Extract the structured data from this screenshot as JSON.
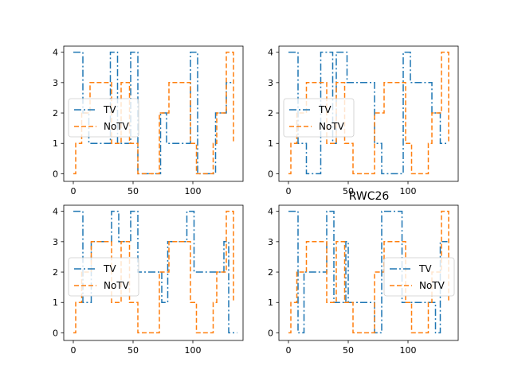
{
  "figure": {
    "annotation": "RWC26"
  },
  "colors": {
    "tv": "#1f77b4",
    "notv": "#ff7f0e",
    "axes": "#000000",
    "background": "#ffffff"
  },
  "chart_data": [
    {
      "type": "line",
      "panel": "top-left",
      "title": "",
      "xlabel": "",
      "ylabel": "",
      "xlim": [
        -8,
        142
      ],
      "ylim": [
        -0.25,
        4.2
      ],
      "xticks": [
        0,
        50,
        100
      ],
      "yticks": [
        0,
        1,
        2,
        3,
        4
      ],
      "legend": {
        "position": "center-left"
      },
      "series": [
        {
          "name": "TV",
          "style": "dashdot",
          "color": "#1f77b4",
          "points": [
            [
              0,
              4
            ],
            [
              8,
              4
            ],
            [
              8,
              2
            ],
            [
              13,
              2
            ],
            [
              13,
              1
            ],
            [
              31,
              1
            ],
            [
              31,
              4
            ],
            [
              37,
              4
            ],
            [
              37,
              1
            ],
            [
              48,
              1
            ],
            [
              48,
              4
            ],
            [
              54,
              4
            ],
            [
              54,
              0
            ],
            [
              73,
              0
            ],
            [
              73,
              2
            ],
            [
              78,
              2
            ],
            [
              78,
              1
            ],
            [
              98,
              1
            ],
            [
              98,
              4
            ],
            [
              104,
              4
            ],
            [
              104,
              0
            ],
            [
              119,
              0
            ],
            [
              119,
              2
            ],
            [
              128,
              2
            ],
            [
              128,
              3
            ],
            [
              134,
              3
            ]
          ]
        },
        {
          "name": "NoTV",
          "style": "dashed",
          "color": "#ff7f0e",
          "points": [
            [
              0,
              0
            ],
            [
              2,
              0
            ],
            [
              2,
              1
            ],
            [
              7,
              1
            ],
            [
              7,
              2
            ],
            [
              14,
              2
            ],
            [
              14,
              3
            ],
            [
              32,
              3
            ],
            [
              32,
              1
            ],
            [
              40,
              1
            ],
            [
              40,
              3
            ],
            [
              47,
              3
            ],
            [
              47,
              1
            ],
            [
              54,
              1
            ],
            [
              54,
              0
            ],
            [
              72,
              0
            ],
            [
              72,
              2
            ],
            [
              80,
              2
            ],
            [
              80,
              3
            ],
            [
              98,
              3
            ],
            [
              98,
              1
            ],
            [
              103,
              1
            ],
            [
              103,
              0
            ],
            [
              117,
              0
            ],
            [
              117,
              1
            ],
            [
              120,
              1
            ],
            [
              120,
              2
            ],
            [
              128,
              2
            ],
            [
              128,
              4
            ],
            [
              134,
              4
            ],
            [
              134,
              1
            ]
          ]
        }
      ]
    },
    {
      "type": "line",
      "panel": "top-right",
      "title": "",
      "xlabel": "",
      "ylabel": "",
      "xlim": [
        -8,
        142
      ],
      "ylim": [
        -0.25,
        4.2
      ],
      "xticks": [
        0,
        50,
        100
      ],
      "yticks": [
        0,
        1,
        2,
        3,
        4
      ],
      "legend": {
        "position": "center-left"
      },
      "series": [
        {
          "name": "TV",
          "style": "dashdot",
          "color": "#1f77b4",
          "points": [
            [
              0,
              4
            ],
            [
              8,
              4
            ],
            [
              8,
              1
            ],
            [
              15,
              1
            ],
            [
              15,
              0
            ],
            [
              27,
              0
            ],
            [
              27,
              4
            ],
            [
              37,
              4
            ],
            [
              37,
              1
            ],
            [
              40,
              1
            ],
            [
              40,
              4
            ],
            [
              49,
              4
            ],
            [
              49,
              3
            ],
            [
              72,
              3
            ],
            [
              72,
              1
            ],
            [
              78,
              1
            ],
            [
              78,
              0
            ],
            [
              96,
              0
            ],
            [
              96,
              4
            ],
            [
              102,
              4
            ],
            [
              102,
              3
            ],
            [
              120,
              3
            ],
            [
              120,
              2
            ],
            [
              127,
              2
            ],
            [
              127,
              1
            ],
            [
              134,
              1
            ]
          ]
        },
        {
          "name": "NoTV",
          "style": "dashed",
          "color": "#ff7f0e",
          "points": [
            [
              0,
              0
            ],
            [
              2,
              0
            ],
            [
              2,
              1
            ],
            [
              7,
              1
            ],
            [
              7,
              2
            ],
            [
              15,
              2
            ],
            [
              15,
              3
            ],
            [
              32,
              3
            ],
            [
              32,
              1
            ],
            [
              40,
              1
            ],
            [
              40,
              3
            ],
            [
              47,
              3
            ],
            [
              47,
              1
            ],
            [
              54,
              1
            ],
            [
              54,
              0
            ],
            [
              72,
              0
            ],
            [
              72,
              2
            ],
            [
              80,
              2
            ],
            [
              80,
              3
            ],
            [
              98,
              3
            ],
            [
              98,
              1
            ],
            [
              103,
              1
            ],
            [
              103,
              0
            ],
            [
              117,
              0
            ],
            [
              117,
              1
            ],
            [
              120,
              1
            ],
            [
              120,
              2
            ],
            [
              128,
              2
            ],
            [
              128,
              4
            ],
            [
              134,
              4
            ],
            [
              134,
              1
            ]
          ]
        }
      ]
    },
    {
      "type": "line",
      "panel": "bottom-left",
      "title": "",
      "xlabel": "",
      "ylabel": "",
      "xlim": [
        -8,
        142
      ],
      "ylim": [
        -0.25,
        4.2
      ],
      "xticks": [
        0,
        50,
        100
      ],
      "yticks": [
        0,
        1,
        2,
        3,
        4
      ],
      "legend": {
        "position": "center-left"
      },
      "series": [
        {
          "name": "TV",
          "style": "dashdot",
          "color": "#1f77b4",
          "points": [
            [
              0,
              4
            ],
            [
              8,
              4
            ],
            [
              8,
              1
            ],
            [
              15,
              1
            ],
            [
              15,
              3
            ],
            [
              32,
              3
            ],
            [
              32,
              4
            ],
            [
              38,
              4
            ],
            [
              38,
              3
            ],
            [
              48,
              3
            ],
            [
              48,
              4
            ],
            [
              54,
              4
            ],
            [
              54,
              2
            ],
            [
              74,
              2
            ],
            [
              74,
              1
            ],
            [
              79,
              1
            ],
            [
              79,
              3
            ],
            [
              95,
              3
            ],
            [
              95,
              4
            ],
            [
              101,
              4
            ],
            [
              101,
              2
            ],
            [
              126,
              2
            ],
            [
              126,
              3
            ],
            [
              130,
              3
            ],
            [
              130,
              0
            ],
            [
              137,
              0
            ]
          ]
        },
        {
          "name": "NoTV",
          "style": "dashed",
          "color": "#ff7f0e",
          "points": [
            [
              0,
              0
            ],
            [
              2,
              0
            ],
            [
              2,
              1
            ],
            [
              7,
              1
            ],
            [
              7,
              2
            ],
            [
              15,
              2
            ],
            [
              15,
              3
            ],
            [
              32,
              3
            ],
            [
              32,
              1
            ],
            [
              40,
              1
            ],
            [
              40,
              3
            ],
            [
              47,
              3
            ],
            [
              47,
              1
            ],
            [
              54,
              1
            ],
            [
              54,
              0
            ],
            [
              72,
              0
            ],
            [
              72,
              2
            ],
            [
              80,
              2
            ],
            [
              80,
              3
            ],
            [
              98,
              3
            ],
            [
              98,
              1
            ],
            [
              103,
              1
            ],
            [
              103,
              0
            ],
            [
              117,
              0
            ],
            [
              117,
              1
            ],
            [
              120,
              1
            ],
            [
              120,
              2
            ],
            [
              128,
              2
            ],
            [
              128,
              4
            ],
            [
              134,
              4
            ],
            [
              134,
              1
            ]
          ]
        }
      ]
    },
    {
      "type": "line",
      "panel": "bottom-right",
      "title": "",
      "xlabel": "",
      "ylabel": "",
      "xlim": [
        -8,
        142
      ],
      "ylim": [
        -0.25,
        4.2
      ],
      "xticks": [
        0,
        50,
        100
      ],
      "yticks": [
        0,
        1,
        2,
        3,
        4
      ],
      "legend": {
        "position": "center-right"
      },
      "series": [
        {
          "name": "TV",
          "style": "dashdot",
          "color": "#1f77b4",
          "points": [
            [
              0,
              4
            ],
            [
              8,
              4
            ],
            [
              8,
              0
            ],
            [
              13,
              0
            ],
            [
              13,
              2
            ],
            [
              32,
              2
            ],
            [
              32,
              4
            ],
            [
              38,
              4
            ],
            [
              38,
              1
            ],
            [
              48,
              1
            ],
            [
              48,
              3
            ],
            [
              50,
              3
            ],
            [
              50,
              1
            ],
            [
              72,
              1
            ],
            [
              72,
              0
            ],
            [
              78,
              0
            ],
            [
              78,
              4
            ],
            [
              95,
              4
            ],
            [
              95,
              1
            ],
            [
              123,
              1
            ],
            [
              123,
              0
            ],
            [
              127,
              0
            ],
            [
              127,
              3
            ],
            [
              133,
              3
            ]
          ]
        },
        {
          "name": "NoTV",
          "style": "dashed",
          "color": "#ff7f0e",
          "points": [
            [
              0,
              0
            ],
            [
              2,
              0
            ],
            [
              2,
              1
            ],
            [
              7,
              1
            ],
            [
              7,
              2
            ],
            [
              15,
              2
            ],
            [
              15,
              3
            ],
            [
              32,
              3
            ],
            [
              32,
              1
            ],
            [
              40,
              1
            ],
            [
              40,
              3
            ],
            [
              47,
              3
            ],
            [
              47,
              1
            ],
            [
              54,
              1
            ],
            [
              54,
              0
            ],
            [
              72,
              0
            ],
            [
              72,
              2
            ],
            [
              80,
              2
            ],
            [
              80,
              3
            ],
            [
              98,
              3
            ],
            [
              98,
              1
            ],
            [
              103,
              1
            ],
            [
              103,
              0
            ],
            [
              117,
              0
            ],
            [
              117,
              1
            ],
            [
              120,
              1
            ],
            [
              120,
              2
            ],
            [
              128,
              2
            ],
            [
              128,
              4
            ],
            [
              134,
              4
            ],
            [
              134,
              1
            ]
          ]
        }
      ]
    }
  ]
}
